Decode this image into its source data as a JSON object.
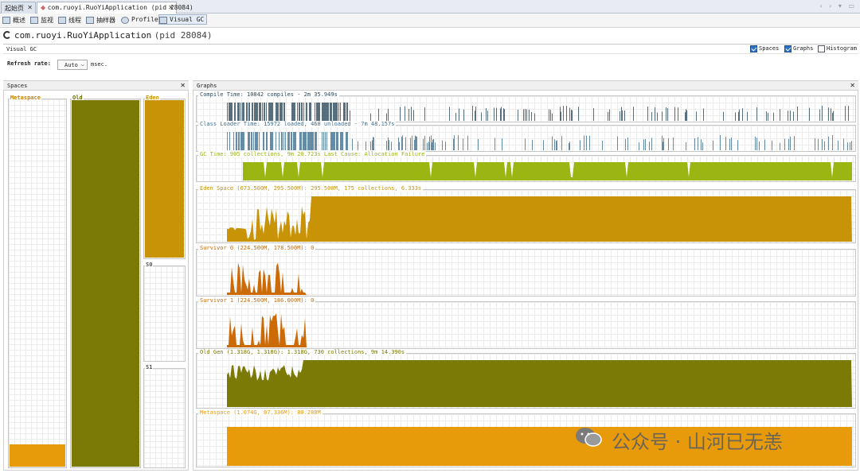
{
  "tabs": [
    {
      "label": "起始页",
      "active": false
    },
    {
      "label": "com.ruoyi.RuoYiApplication (pid 28084)",
      "active": true
    }
  ],
  "toolbar": [
    {
      "label": "概述",
      "icon": "overview-icon"
    },
    {
      "label": "监视",
      "icon": "monitor-icon"
    },
    {
      "label": "线程",
      "icon": "threads-icon"
    },
    {
      "label": "抽样器",
      "icon": "sampler-icon"
    },
    {
      "label": "Profiler",
      "icon": "profiler-icon"
    },
    {
      "label": "Visual GC",
      "icon": "visual-gc-icon",
      "selected": true
    }
  ],
  "title": {
    "app": "com.ruoyi.RuoYiApplication",
    "pid": "(pid 28084)"
  },
  "vgc": {
    "label": "Visual GC",
    "spaces": "Spaces",
    "graphs": "Graphs",
    "histogram": "Histogram"
  },
  "refresh": {
    "label": "Refresh rate:",
    "value": "Auto",
    "unit": "msec."
  },
  "spaces_panel": {
    "title": "Spaces",
    "metaspace": "Metaspace",
    "old": "Old",
    "eden": "Eden",
    "s0": "S0",
    "s1": "S1"
  },
  "graphs_panel": {
    "title": "Graphs"
  },
  "graphs": [
    {
      "label": "Compile Time: 10842 compiles - 2m 35.949s",
      "color": "#2f4b5e",
      "kind": "spikes"
    },
    {
      "label": "Class Loader Time: 15972 loaded, 468 unloaded - 7m 48.157s",
      "color": "#41708f",
      "kind": "spikes"
    },
    {
      "label": "GC Time: 905 collections, 9m 20.723s  Last Cause: Allocation Failure",
      "color": "#9bb513",
      "kind": "gc"
    },
    {
      "label": "Eden Space (673.500M, 295.500M): 295.500M, 175 collections, 6.333s",
      "color": "#c89306",
      "kind": "eden"
    },
    {
      "label": "Survivor 0 (224.500M, 178.500M): 0",
      "color": "#cc6a06",
      "kind": "surv"
    },
    {
      "label": "Survivor 1 (224.500M, 186.000M): 0",
      "color": "#cc6a06",
      "kind": "surv"
    },
    {
      "label": "Old Gen (1.318G, 1.318G): 1.318G, 730 collections, 9m 14.390s",
      "color": "#7b7a06",
      "kind": "old"
    },
    {
      "label": "Metaspace (1.074G, 87.336M): 80.288M",
      "color": "#e89b0a",
      "kind": "meta"
    }
  ],
  "space_colors": {
    "metaspace": "#e89b0a",
    "old": "#7b7a06",
    "eden": "#c89306"
  },
  "space_fill": {
    "metaspace": 0.06,
    "old": 1.0,
    "eden": 1.0,
    "s0": 0,
    "s1": 0
  },
  "watermark": "公众号 · 山河已无恙"
}
